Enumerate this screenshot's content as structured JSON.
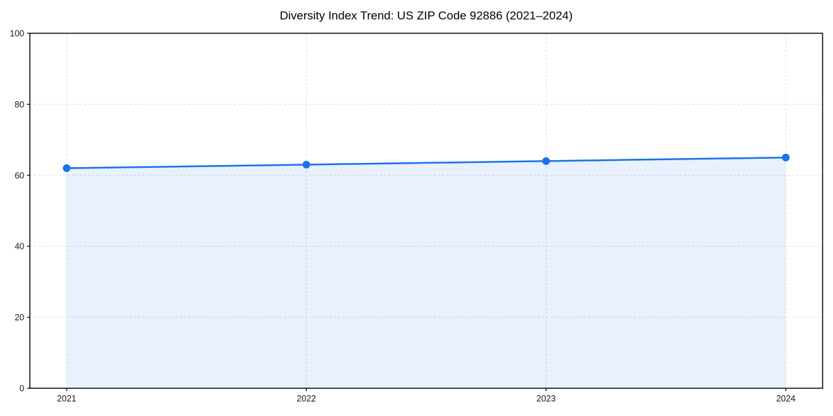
{
  "chart_data": {
    "type": "area",
    "title": "Diversity Index Trend: US ZIP Code 92886 (2021–2024)",
    "series_name": "Diversity Index",
    "categories": [
      "2021",
      "2022",
      "2023",
      "2024"
    ],
    "values": [
      62,
      63,
      64,
      65
    ],
    "xlabel": "",
    "ylabel": "",
    "ylim": [
      0,
      100
    ],
    "yticks": [
      0,
      20,
      40,
      60,
      80,
      100
    ],
    "grid": true,
    "grid_style": "dashed",
    "legend": "none",
    "colors": {
      "line": "#1a73e8",
      "marker": "#1a73e8",
      "fill": "#1a73e8",
      "fill_opacity": 0.1,
      "grid": "#dcdcdc",
      "spine": "#000000",
      "tick_label": "#1a1a1a",
      "title": "#000000",
      "background": "#ffffff"
    }
  }
}
